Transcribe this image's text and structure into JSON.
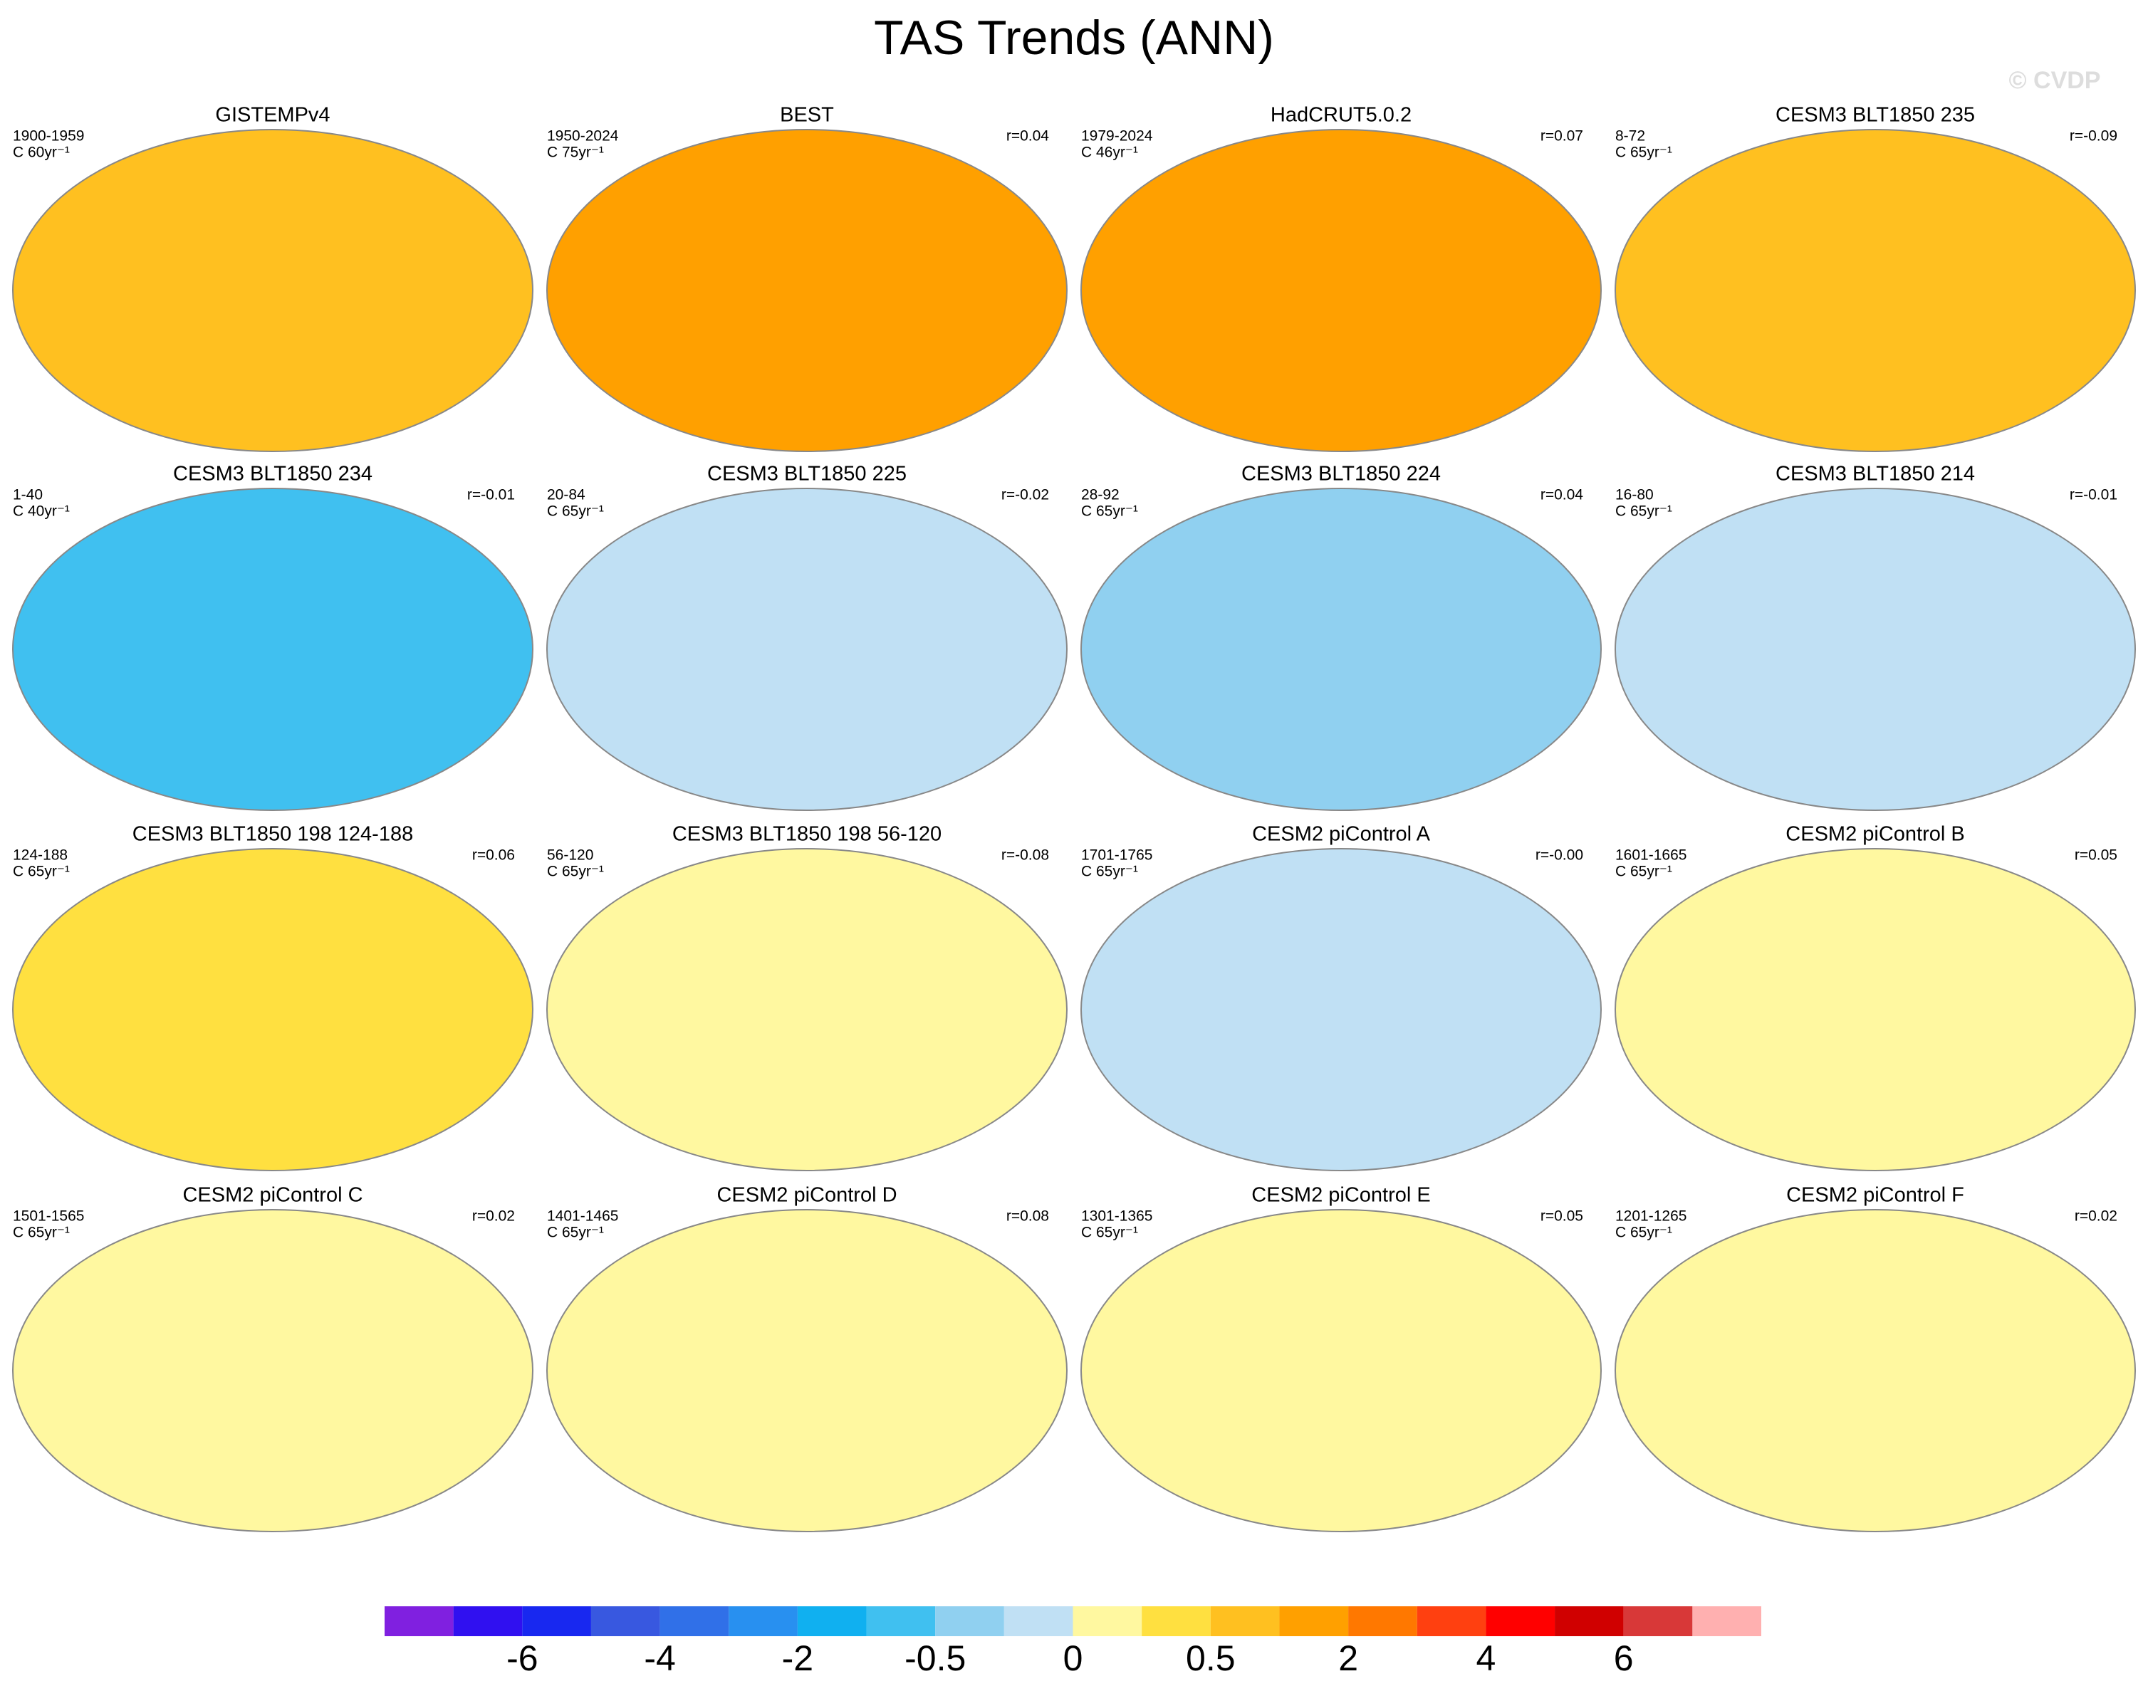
{
  "title": "TAS Trends (ANN)",
  "watermark": "© CVDP",
  "panels": [
    {
      "title": "GISTEMPv4",
      "period": "1900-1959",
      "units": "C 60yr⁻¹",
      "color": "#ffc020"
    },
    {
      "title": "BEST",
      "period": "1950-2024",
      "units": "C 75yr⁻¹",
      "r": "r=0.04",
      "color": "#ffa000"
    },
    {
      "title": "HadCRUT5.0.2",
      "period": "1979-2024",
      "units": "C 46yr⁻¹",
      "r": "r=0.07",
      "color": "#ffa000"
    },
    {
      "title": "CESM3 BLT1850 235",
      "period": "8-72",
      "units": "C 65yr⁻¹",
      "r": "r=-0.09",
      "color": "#ffc020"
    },
    {
      "title": "CESM3 BLT1850 234",
      "period": "1-40",
      "units": "C 40yr⁻¹",
      "r": "r=-0.01",
      "color": "#40c0f0"
    },
    {
      "title": "CESM3 BLT1850 225",
      "period": "20-84",
      "units": "C 65yr⁻¹",
      "r": "r=-0.02",
      "color": "#c0e0f4"
    },
    {
      "title": "CESM3 BLT1850 224",
      "period": "28-92",
      "units": "C 65yr⁻¹",
      "r": "r=0.04",
      "color": "#90d0f0"
    },
    {
      "title": "CESM3 BLT1850 214",
      "period": "16-80",
      "units": "C 65yr⁻¹",
      "r": "r=-0.01",
      "color": "#c0e0f4"
    },
    {
      "title": "CESM3 BLT1850 198 124-188",
      "period": "124-188",
      "units": "C 65yr⁻¹",
      "r": "r=0.06",
      "color": "#ffe040"
    },
    {
      "title": "CESM3 BLT1850 198 56-120",
      "period": "56-120",
      "units": "C 65yr⁻¹",
      "r": "r=-0.08",
      "color": "#fff8a0"
    },
    {
      "title": "CESM2 piControl A",
      "period": "1701-1765",
      "units": "C 65yr⁻¹",
      "r": "r=-0.00",
      "color": "#c0e0f4"
    },
    {
      "title": "CESM2 piControl B",
      "period": "1601-1665",
      "units": "C 65yr⁻¹",
      "r": "r=0.05",
      "color": "#fff8a0"
    },
    {
      "title": "CESM2 piControl C",
      "period": "1501-1565",
      "units": "C 65yr⁻¹",
      "r": "r=0.02",
      "color": "#fff8a0"
    },
    {
      "title": "CESM2 piControl D",
      "period": "1401-1465",
      "units": "C 65yr⁻¹",
      "r": "r=0.08",
      "color": "#fff8a0"
    },
    {
      "title": "CESM2 piControl E",
      "period": "1301-1365",
      "units": "C 65yr⁻¹",
      "r": "r=0.05",
      "color": "#fff8a0"
    },
    {
      "title": "CESM2 piControl F",
      "period": "1201-1265",
      "units": "C 65yr⁻¹",
      "r": "r=0.02",
      "color": "#fff8a0"
    }
  ],
  "colorbar": {
    "colors": [
      "#8020e0",
      "#3010f0",
      "#1828f0",
      "#3858e0",
      "#3070e8",
      "#2890f0",
      "#10b0f0",
      "#40c0f0",
      "#90d0f0",
      "#c0e0f4",
      "#fff8a0",
      "#ffe040",
      "#ffc020",
      "#ffa000",
      "#ff7800",
      "#ff4010",
      "#ff0000",
      "#d00000",
      "#d83838",
      "#ffb0b0"
    ],
    "labels": [
      -6,
      -4,
      -2,
      -0.5,
      0,
      0.5,
      2,
      4,
      6
    ]
  }
}
